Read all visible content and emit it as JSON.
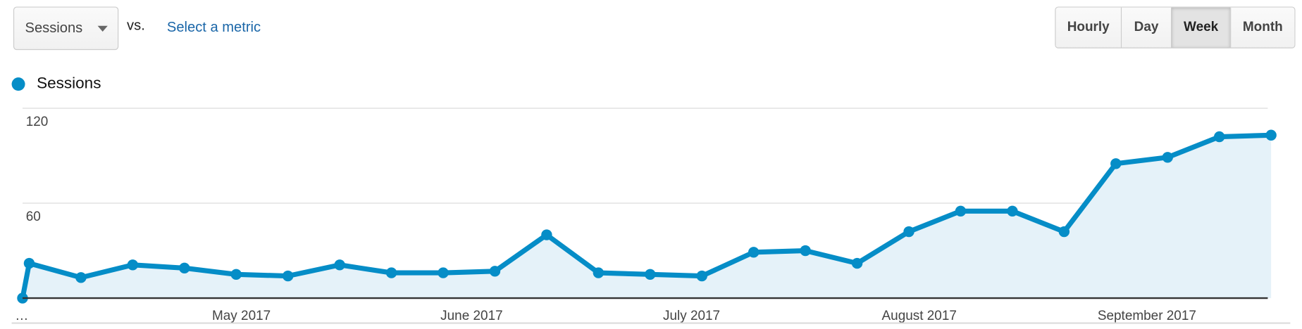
{
  "toolbar": {
    "metric_select": "Sessions",
    "vs_label": "vs.",
    "select_metric_link": "Select a metric",
    "granularity": [
      {
        "label": "Hourly",
        "active": false
      },
      {
        "label": "Day",
        "active": false
      },
      {
        "label": "Week",
        "active": true
      },
      {
        "label": "Month",
        "active": false
      }
    ]
  },
  "colors": {
    "series": "#058dc7",
    "fill": "#e5f2f9",
    "link": "#1a66a8"
  },
  "chart_data": {
    "type": "area",
    "legend": "top-left",
    "grid": true,
    "ylim": [
      0,
      120
    ],
    "y_ticks": [
      "60",
      "120"
    ],
    "x_tick_labels": [
      "…",
      "May 2017",
      "June 2017",
      "July 2017",
      "August 2017",
      "September 2017"
    ],
    "series": [
      {
        "name": "Sessions",
        "values": [
          0,
          22,
          13,
          21,
          19,
          15,
          14,
          21,
          16,
          16,
          17,
          40,
          16,
          15,
          14,
          29,
          30,
          22,
          42,
          55,
          55,
          42,
          85,
          89,
          102,
          103
        ]
      }
    ]
  }
}
